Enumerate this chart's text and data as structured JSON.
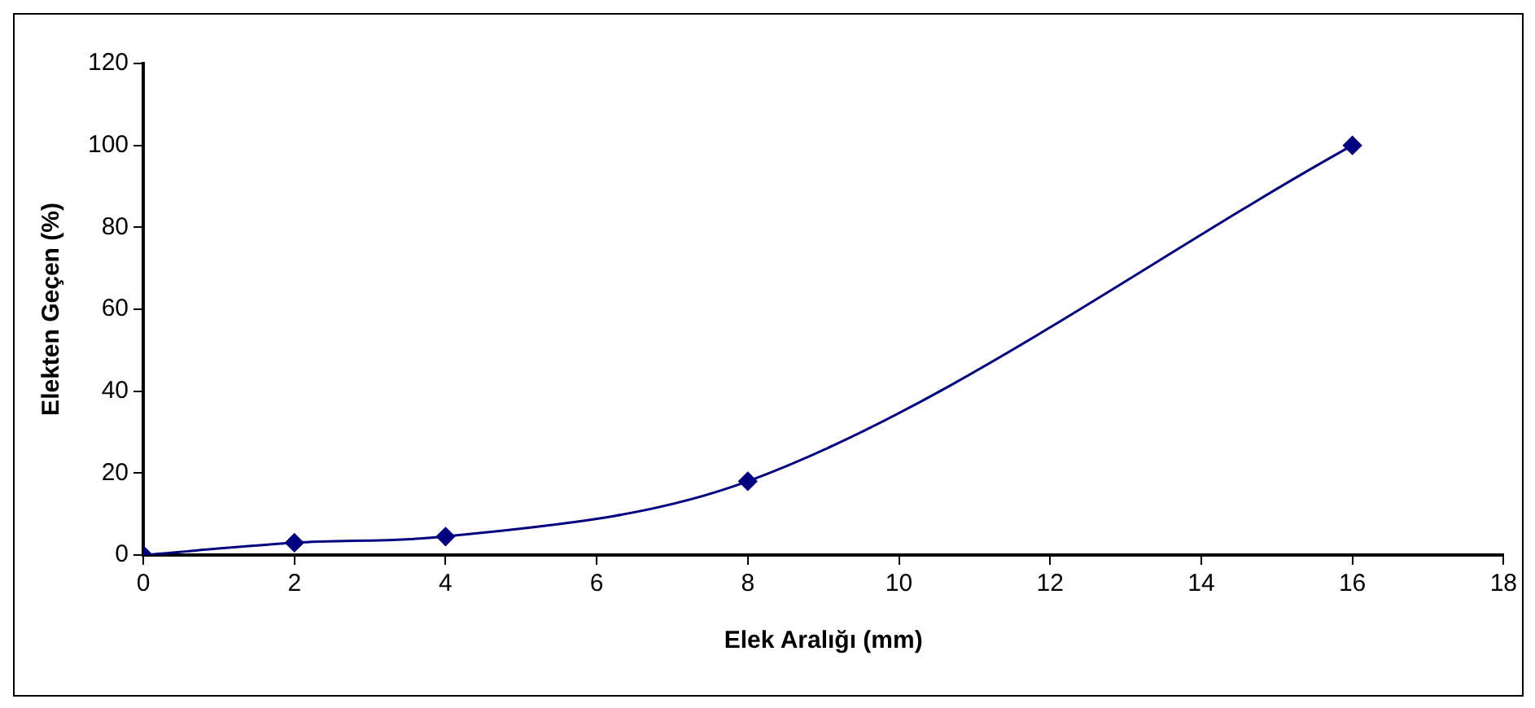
{
  "chart_data": {
    "type": "line",
    "xlabel": "Elek Aralığı (mm)",
    "ylabel": "Elekten Geçen (%)",
    "x": [
      0,
      2,
      4,
      8,
      16
    ],
    "series": [
      {
        "color": "#000080",
        "values": [
          0,
          3,
          4.5,
          18,
          100
        ]
      }
    ],
    "xlim": [
      0,
      18
    ],
    "xticks": [
      0,
      2,
      4,
      6,
      8,
      10,
      12,
      14,
      16,
      18
    ],
    "ylim": [
      0,
      120
    ],
    "yticks": [
      0,
      20,
      40,
      60,
      80,
      100,
      120
    ],
    "grid": false,
    "legend": false,
    "marker": "diamond",
    "line_style": "solid"
  }
}
